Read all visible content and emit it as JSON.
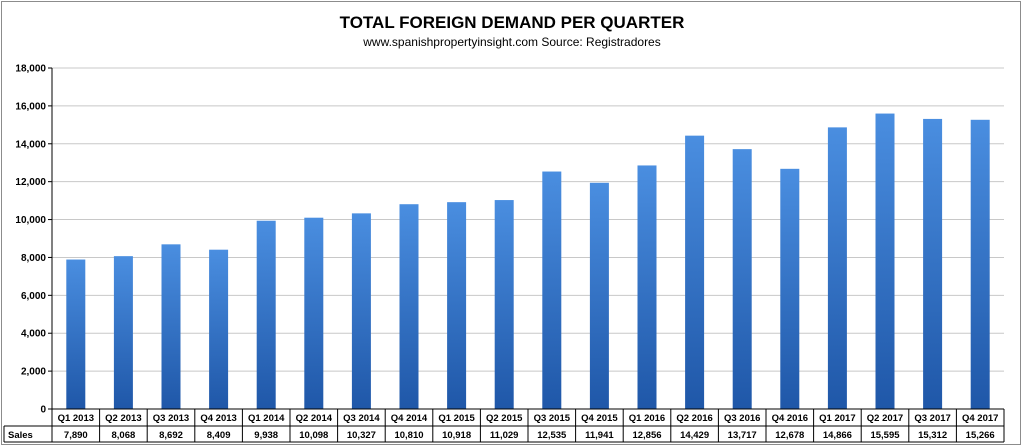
{
  "chart_data": {
    "type": "bar",
    "title": "TOTAL FOREIGN DEMAND PER QUARTER",
    "subtitle": "www.spanishpropertyinsight.com Source: Registradores",
    "categories": [
      "Q1 2013",
      "Q2 2013",
      "Q3 2013",
      "Q4 2013",
      "Q1 2014",
      "Q2 2014",
      "Q3 2014",
      "Q4 2014",
      "Q1 2015",
      "Q2 2015",
      "Q3 2015",
      "Q4 2015",
      "Q1 2016",
      "Q2 2016",
      "Q3 2016",
      "Q4 2016",
      "Q1 2017",
      "Q2 2017",
      "Q3 2017",
      "Q4 2017"
    ],
    "series": [
      {
        "name": "Sales",
        "values": [
          7890,
          8068,
          8692,
          8409,
          9938,
          10098,
          10327,
          10810,
          10918,
          11029,
          12535,
          11941,
          12856,
          14429,
          13717,
          12678,
          14866,
          15595,
          15312,
          15266
        ],
        "labels": [
          "7,890",
          "8,068",
          "8,692",
          "8,409",
          "9,938",
          "10,098",
          "10,327",
          "10,810",
          "10,918",
          "11,029",
          "12,535",
          "11,941",
          "12,856",
          "14,429",
          "13,717",
          "12,678",
          "14,866",
          "15,595",
          "15,312",
          "15,266"
        ]
      }
    ],
    "yticks": [
      0,
      2000,
      4000,
      6000,
      8000,
      10000,
      12000,
      14000,
      16000,
      18000
    ],
    "ytick_labels": [
      "0",
      "2,000",
      "4,000",
      "6,000",
      "8,000",
      "10,000",
      "12,000",
      "14,000",
      "16,000",
      "18,000"
    ],
    "ylim": [
      0,
      18000
    ],
    "xlabel": "",
    "ylabel": "",
    "grid": true,
    "data_table": true,
    "colors": {
      "bar_top": "#4a8ee0",
      "bar_bottom": "#1f57a8",
      "grid": "#c8c8c8",
      "axis": "#000000"
    }
  }
}
